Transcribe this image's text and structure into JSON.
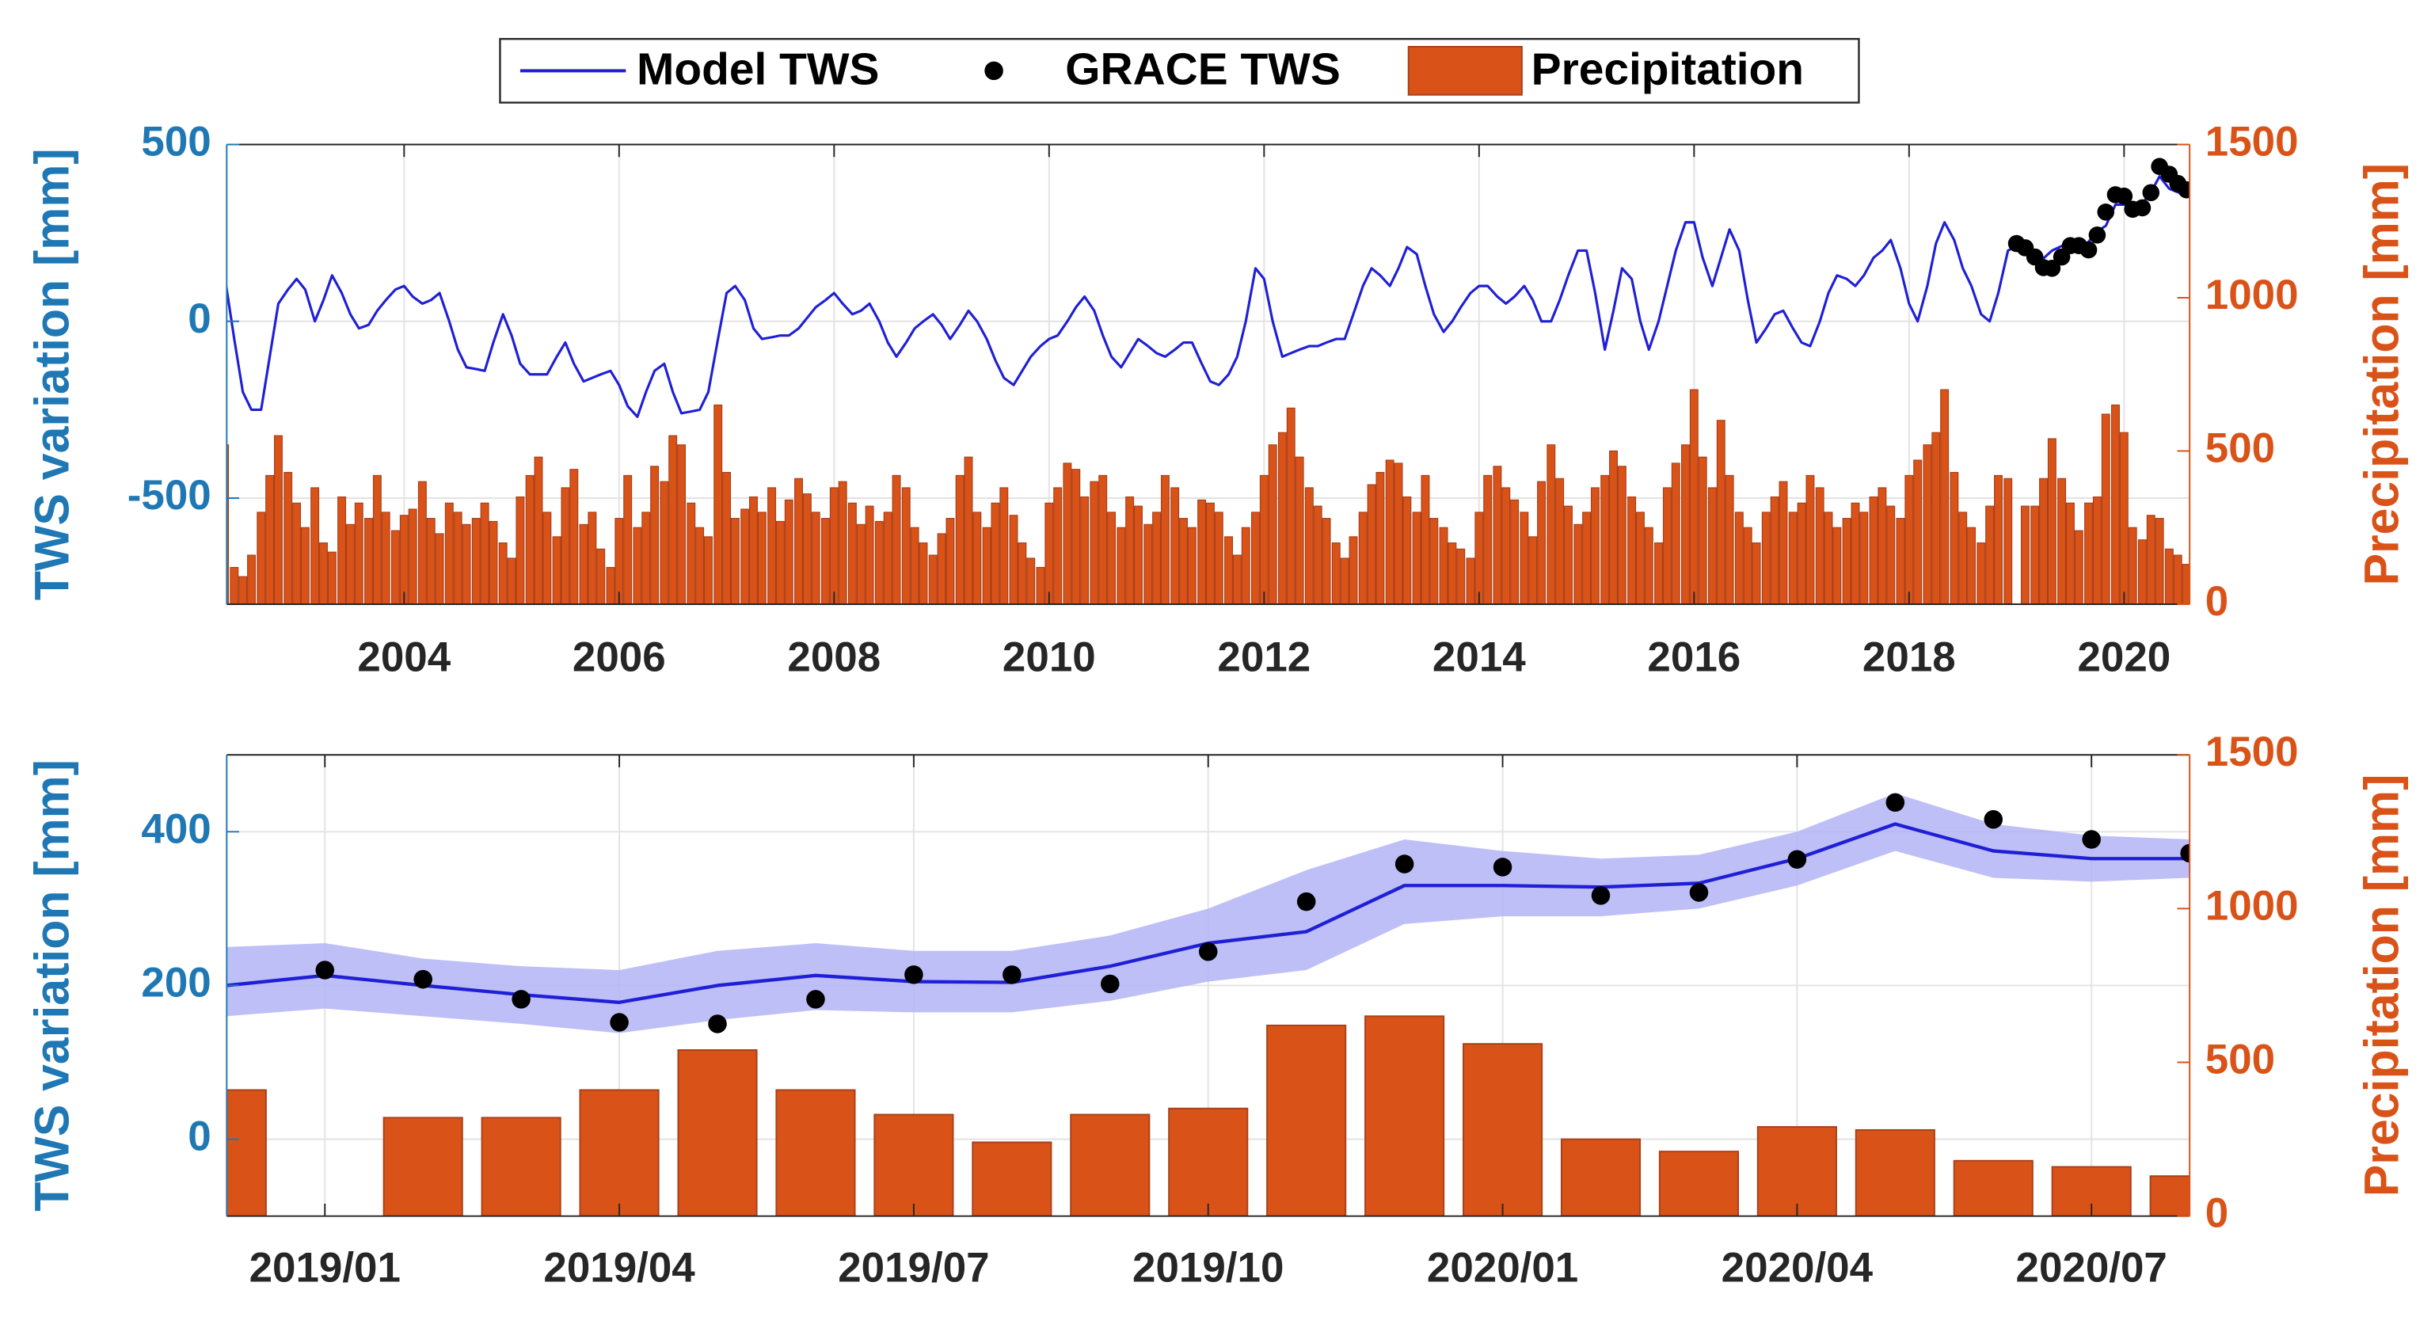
{
  "chart_data": [
    {
      "type": "combo",
      "ylabel": "TWS variation [mm]",
      "y2label": "Precipitation [mm]",
      "xlim": [
        2002.35,
        2020.61
      ],
      "xticks": [
        2004,
        2006,
        2008,
        2010,
        2012,
        2014,
        2016,
        2018,
        2020
      ],
      "ylim": [
        -800,
        500
      ],
      "yticks": [
        -500,
        0,
        500
      ],
      "y2lim": [
        0,
        1500
      ],
      "y2ticks": [
        0,
        500,
        1000,
        1500
      ],
      "grid": true,
      "legend": "top",
      "x": [
        2002.33,
        2002.42,
        2002.5,
        2002.58,
        2002.67,
        2002.75,
        2002.83,
        2002.92,
        2003,
        2003.08,
        2003.17,
        2003.25,
        2003.33,
        2003.42,
        2003.5,
        2003.58,
        2003.67,
        2003.75,
        2003.83,
        2003.92,
        2004,
        2004.08,
        2004.17,
        2004.25,
        2004.33,
        2004.42,
        2004.5,
        2004.58,
        2004.67,
        2004.75,
        2004.83,
        2004.92,
        2005,
        2005.08,
        2005.17,
        2005.25,
        2005.33,
        2005.42,
        2005.5,
        2005.58,
        2005.67,
        2005.75,
        2005.83,
        2005.92,
        2006,
        2006.08,
        2006.17,
        2006.25,
        2006.33,
        2006.42,
        2006.5,
        2006.58,
        2006.67,
        2006.75,
        2006.83,
        2006.92,
        2007,
        2007.08,
        2007.17,
        2007.25,
        2007.33,
        2007.42,
        2007.5,
        2007.58,
        2007.67,
        2007.75,
        2007.83,
        2007.92,
        2008,
        2008.08,
        2008.17,
        2008.25,
        2008.33,
        2008.42,
        2008.5,
        2008.58,
        2008.67,
        2008.75,
        2008.83,
        2008.92,
        2009,
        2009.08,
        2009.17,
        2009.25,
        2009.33,
        2009.42,
        2009.5,
        2009.58,
        2009.67,
        2009.75,
        2009.83,
        2009.92,
        2010,
        2010.08,
        2010.17,
        2010.25,
        2010.33,
        2010.42,
        2010.5,
        2010.58,
        2010.67,
        2010.75,
        2010.83,
        2010.92,
        2011,
        2011.08,
        2011.17,
        2011.25,
        2011.33,
        2011.42,
        2011.5,
        2011.58,
        2011.67,
        2011.75,
        2011.83,
        2011.92,
        2012,
        2012.08,
        2012.17,
        2012.25,
        2012.33,
        2012.42,
        2012.5,
        2012.58,
        2012.67,
        2012.75,
        2012.83,
        2012.92,
        2013,
        2013.08,
        2013.17,
        2013.25,
        2013.33,
        2013.42,
        2013.5,
        2013.58,
        2013.67,
        2013.75,
        2013.83,
        2013.92,
        2014,
        2014.08,
        2014.17,
        2014.25,
        2014.33,
        2014.42,
        2014.5,
        2014.58,
        2014.67,
        2014.75,
        2014.83,
        2014.92,
        2015,
        2015.08,
        2015.17,
        2015.25,
        2015.33,
        2015.42,
        2015.5,
        2015.58,
        2015.67,
        2015.75,
        2015.83,
        2015.92,
        2016,
        2016.08,
        2016.17,
        2016.25,
        2016.33,
        2016.42,
        2016.5,
        2016.58,
        2016.67,
        2016.75,
        2016.83,
        2016.92,
        2017,
        2017.08,
        2017.17,
        2017.25,
        2017.33,
        2017.42,
        2017.5,
        2017.58,
        2017.67,
        2017.75,
        2017.83,
        2017.92,
        2018,
        2018.08,
        2018.17,
        2018.25,
        2018.33,
        2018.42,
        2018.5,
        2018.58,
        2018.67,
        2018.75,
        2018.83,
        2018.92,
        2019,
        2019.08,
        2019.17,
        2019.25,
        2019.33,
        2019.42,
        2019.5,
        2019.58,
        2019.67,
        2019.75,
        2019.83,
        2019.92,
        2020,
        2020.08,
        2020.17,
        2020.25,
        2020.33,
        2020.42,
        2020.5,
        2020.58
      ],
      "series": [
        {
          "name": "Model TWS",
          "type": "line",
          "color": "#1f1fd6",
          "values": [
            130,
            -50,
            -200,
            -250,
            -250,
            -100,
            50,
            90,
            120,
            90,
            0,
            60,
            130,
            80,
            20,
            -20,
            -10,
            30,
            60,
            90,
            100,
            70,
            50,
            60,
            80,
            0,
            -80,
            -130,
            -135,
            -140,
            -60,
            20,
            -40,
            -120,
            -150,
            -150,
            -150,
            -100,
            -60,
            -120,
            -170,
            -160,
            -150,
            -140,
            -180,
            -240,
            -270,
            -200,
            -140,
            -120,
            -200,
            -260,
            -255,
            -250,
            -200,
            -50,
            80,
            100,
            60,
            -20,
            -50,
            -45,
            -40,
            -40,
            -20,
            10,
            40,
            60,
            80,
            50,
            20,
            30,
            50,
            0,
            -60,
            -100,
            -60,
            -20,
            0,
            20,
            -10,
            -50,
            -10,
            30,
            0,
            -50,
            -110,
            -160,
            -180,
            -140,
            -100,
            -70,
            -50,
            -40,
            0,
            40,
            70,
            30,
            -40,
            -100,
            -130,
            -90,
            -50,
            -70,
            -90,
            -100,
            -80,
            -60,
            -60,
            -120,
            -170,
            -180,
            -150,
            -100,
            0,
            150,
            120,
            0,
            -100,
            -90,
            -80,
            -70,
            -70,
            -60,
            -50,
            -50,
            20,
            100,
            150,
            130,
            100,
            150,
            210,
            190,
            100,
            20,
            -30,
            0,
            40,
            80,
            100,
            100,
            70,
            50,
            70,
            100,
            60,
            0,
            0,
            60,
            130,
            200,
            200,
            80,
            -80,
            30,
            150,
            120,
            0,
            -80,
            0,
            100,
            200,
            280,
            280,
            180,
            100,
            180,
            260,
            200,
            60,
            -60,
            -20,
            20,
            30,
            -20,
            -60,
            -70,
            0,
            80,
            130,
            120,
            100,
            130,
            180,
            200,
            230,
            150,
            50,
            0,
            100,
            220,
            280,
            230,
            150,
            100,
            20,
            0,
            80,
            200,
            213,
            200,
            188,
            178,
            200,
            213,
            205,
            204,
            225,
            255,
            270,
            330,
            330,
            328,
            333,
            365,
            410,
            375,
            365,
            365
          ]
        },
        {
          "name": "GRACE TWS",
          "type": "scatter",
          "color": "#000000",
          "x": [
            2019,
            2019.08,
            2019.17,
            2019.25,
            2019.33,
            2019.42,
            2019.5,
            2019.58,
            2019.67,
            2019.75,
            2019.83,
            2019.92,
            2020,
            2020.08,
            2020.17,
            2020.25,
            2020.33,
            2020.42,
            2020.5,
            2020.58
          ],
          "values": [
            220,
            208,
            182,
            152,
            150,
            182,
            214,
            214,
            202,
            244,
            309,
            358,
            354,
            317,
            321,
            364,
            438,
            416,
            390,
            372
          ]
        },
        {
          "name": "Precipitation",
          "type": "bar",
          "color": "#d95319",
          "axis": "y2",
          "values": [
            520,
            120,
            90,
            160,
            300,
            420,
            550,
            430,
            330,
            250,
            380,
            200,
            170,
            350,
            260,
            330,
            280,
            420,
            300,
            240,
            290,
            310,
            400,
            280,
            230,
            330,
            300,
            260,
            280,
            330,
            270,
            200,
            150,
            350,
            420,
            480,
            300,
            220,
            380,
            440,
            260,
            300,
            180,
            120,
            280,
            420,
            250,
            300,
            450,
            400,
            550,
            520,
            330,
            250,
            220,
            650,
            430,
            280,
            310,
            350,
            300,
            380,
            270,
            340,
            410,
            360,
            300,
            280,
            380,
            400,
            330,
            260,
            320,
            270,
            300,
            420,
            380,
            250,
            200,
            160,
            230,
            280,
            420,
            480,
            300,
            250,
            330,
            380,
            290,
            200,
            150,
            120,
            330,
            380,
            460,
            440,
            350,
            400,
            420,
            300,
            250,
            350,
            320,
            260,
            300,
            420,
            380,
            280,
            250,
            340,
            330,
            300,
            220,
            160,
            250,
            300,
            420,
            520,
            560,
            640,
            480,
            380,
            320,
            280,
            200,
            150,
            220,
            300,
            390,
            430,
            470,
            460,
            350,
            300,
            420,
            280,
            250,
            200,
            180,
            150,
            300,
            420,
            450,
            380,
            340,
            300,
            220,
            400,
            520,
            410,
            320,
            260,
            300,
            380,
            420,
            500,
            450,
            350,
            300,
            250,
            200,
            380,
            460,
            520,
            700,
            480,
            380,
            600,
            420,
            300,
            250,
            200,
            300,
            350,
            400,
            300,
            330,
            420,
            380,
            300,
            250,
            280,
            330,
            300,
            350,
            380,
            320,
            280,
            420,
            470,
            520,
            560,
            700,
            430,
            300,
            250,
            200,
            320,
            420,
            410,
            null,
            320,
            320,
            410,
            540,
            410,
            330,
            240,
            330,
            350,
            620,
            650,
            560,
            250,
            210,
            290,
            280,
            180,
            160,
            130
          ]
        }
      ]
    },
    {
      "type": "combo",
      "ylabel": "TWS variation [mm]",
      "y2label": "Precipitation [mm]",
      "xlim": [
        "2018/12",
        "2020/08"
      ],
      "xticks": [
        "2019/01",
        "2019/04",
        "2019/07",
        "2019/10",
        "2020/01",
        "2020/04",
        "2020/07"
      ],
      "ylim": [
        -100,
        500
      ],
      "yticks": [
        0,
        200,
        400
      ],
      "y2lim": [
        0,
        1500
      ],
      "y2ticks": [
        0,
        500,
        1000,
        1500
      ],
      "grid": true,
      "x": [
        "2018/12",
        "2019/01",
        "2019/02",
        "2019/03",
        "2019/04",
        "2019/05",
        "2019/06",
        "2019/07",
        "2019/08",
        "2019/09",
        "2019/10",
        "2019/11",
        "2019/12",
        "2020/01",
        "2020/02",
        "2020/03",
        "2020/04",
        "2020/05",
        "2020/06",
        "2020/07",
        "2020/08"
      ],
      "series": [
        {
          "type": "line",
          "color": "#1f1fd6",
          "band_color": "#b4b4f6",
          "values": [
            200,
            213,
            200,
            188,
            178,
            200,
            213,
            205,
            204,
            225,
            255,
            270,
            330,
            330,
            328,
            333,
            365,
            410,
            375,
            365,
            365
          ],
          "lower": [
            160,
            170,
            160,
            150,
            138,
            155,
            168,
            165,
            165,
            180,
            205,
            220,
            280,
            290,
            290,
            300,
            330,
            375,
            340,
            335,
            340
          ],
          "upper": [
            250,
            255,
            235,
            225,
            220,
            245,
            255,
            245,
            245,
            265,
            300,
            350,
            390,
            375,
            365,
            370,
            400,
            450,
            410,
            395,
            390
          ]
        },
        {
          "type": "scatter",
          "color": "#000000",
          "x": [
            "2019/01",
            "2019/02",
            "2019/03",
            "2019/04",
            "2019/05",
            "2019/06",
            "2019/07",
            "2019/08",
            "2019/09",
            "2019/10",
            "2019/11",
            "2019/12",
            "2020/01",
            "2020/02",
            "2020/03",
            "2020/04",
            "2020/05",
            "2020/06",
            "2020/07",
            "2020/08"
          ],
          "values": [
            220,
            208,
            182,
            152,
            150,
            182,
            214,
            214,
            202,
            244,
            309,
            358,
            354,
            317,
            321,
            364,
            438,
            416,
            390,
            372
          ]
        },
        {
          "type": "bar",
          "color": "#d95319",
          "axis": "y2",
          "values": [
            410,
            null,
            320,
            320,
            410,
            540,
            410,
            330,
            240,
            330,
            350,
            620,
            650,
            560,
            250,
            210,
            290,
            280,
            180,
            160,
            130
          ]
        }
      ]
    }
  ]
}
